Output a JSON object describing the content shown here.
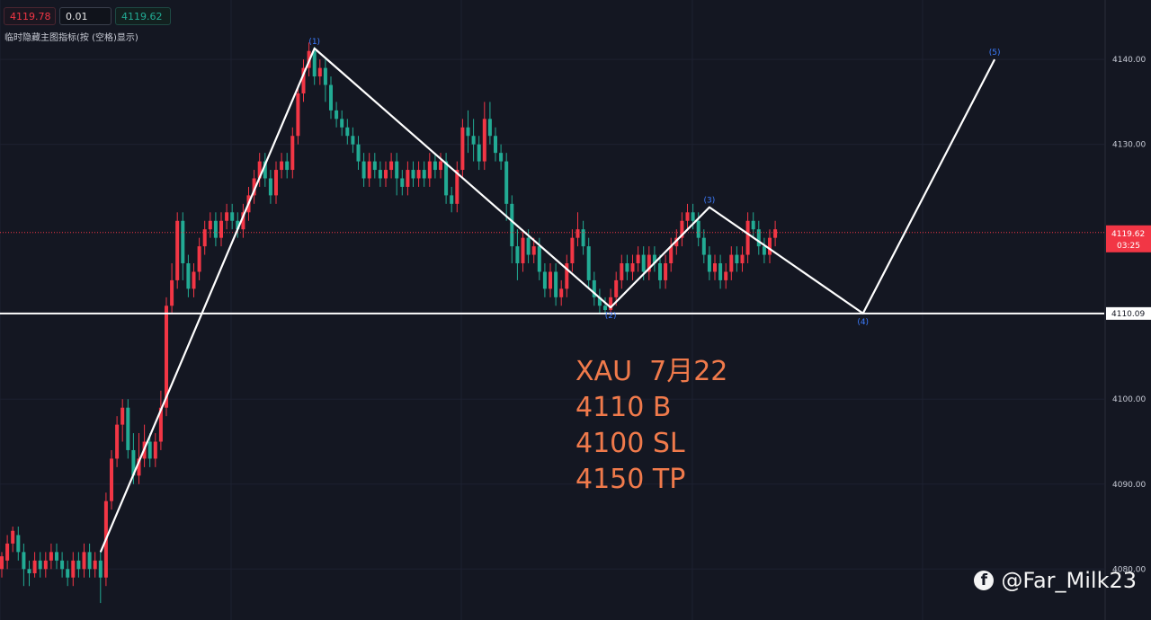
{
  "toolbar": {
    "bid": "4119.78",
    "quantity": "0.01",
    "ask": "4119.62",
    "hint": "临时隐藏主图指标(按 (空格)显示)"
  },
  "colors": {
    "background": "#141722",
    "up_candle": "#f23645",
    "down_candle": "#22ab94",
    "wave_line": "#ffffff",
    "wave_label": "#3d7dff",
    "text_accent": "#f07a4b"
  },
  "chart_data": {
    "type": "candlestick",
    "symbol": "XAU",
    "y_axis_ticks": [
      "4140.00",
      "4130.00",
      "4100.00",
      "4090.00",
      "4080.00"
    ],
    "ylim": [
      4074,
      4147
    ],
    "current_price": {
      "value": 4119.62,
      "label": "4119.62",
      "countdown": "03:25"
    },
    "support_line": {
      "value": 4110.09,
      "label": "4110.09"
    },
    "candles": [
      [
        4080,
        4081.5,
        4079,
        4082
      ],
      [
        4081,
        4083,
        4080,
        4084
      ],
      [
        4083,
        4084.5,
        4082,
        4085
      ],
      [
        4084,
        4082,
        4081,
        4085
      ],
      [
        4082,
        4080,
        4078,
        4083
      ],
      [
        4080,
        4079.5,
        4078,
        4081
      ],
      [
        4079.5,
        4081,
        4079,
        4082
      ],
      [
        4081,
        4080,
        4079,
        4082
      ],
      [
        4080,
        4081,
        4079,
        4082
      ],
      [
        4081,
        4082,
        4080,
        4083
      ],
      [
        4082,
        4081,
        4080,
        4083
      ],
      [
        4081,
        4080,
        4079,
        4082
      ],
      [
        4080,
        4079,
        4078,
        4081
      ],
      [
        4079,
        4081,
        4078,
        4082
      ],
      [
        4081,
        4080,
        4079,
        4082
      ],
      [
        4080,
        4082,
        4079,
        4083
      ],
      [
        4082,
        4080,
        4079,
        4083
      ],
      [
        4080,
        4081,
        4079,
        4082
      ],
      [
        4081,
        4079,
        4076,
        4082
      ],
      [
        4079,
        4088,
        4078,
        4089
      ],
      [
        4088,
        4093,
        4087,
        4094
      ],
      [
        4093,
        4097,
        4092,
        4098
      ],
      [
        4097,
        4099,
        4095,
        4100
      ],
      [
        4099,
        4094,
        4093,
        4100
      ],
      [
        4094,
        4091,
        4090,
        4096
      ],
      [
        4091,
        4093,
        4090,
        4096
      ],
      [
        4093,
        4095,
        4092,
        4097
      ],
      [
        4095,
        4093,
        4092,
        4096
      ],
      [
        4093,
        4095,
        4092,
        4096
      ],
      [
        4095,
        4099,
        4094,
        4101
      ],
      [
        4099,
        4111,
        4098,
        4112
      ],
      [
        4111,
        4114,
        4110,
        4116
      ],
      [
        4114,
        4121,
        4113,
        4122
      ],
      [
        4121,
        4116,
        4114,
        4122
      ],
      [
        4116,
        4113,
        4112,
        4117
      ],
      [
        4113,
        4115,
        4112,
        4116
      ],
      [
        4115,
        4118,
        4114,
        4119
      ],
      [
        4118,
        4120,
        4117,
        4121
      ],
      [
        4120,
        4121,
        4119,
        4122
      ],
      [
        4121,
        4119,
        4118,
        4122
      ],
      [
        4119,
        4121,
        4118,
        4122
      ],
      [
        4121,
        4122,
        4120,
        4123
      ],
      [
        4122,
        4121,
        4120,
        4123
      ],
      [
        4121,
        4120,
        4119,
        4122
      ],
      [
        4120,
        4122,
        4119,
        4123
      ],
      [
        4122,
        4124,
        4121,
        4125
      ],
      [
        4124,
        4126,
        4123,
        4127
      ],
      [
        4126,
        4128,
        4125,
        4129
      ],
      [
        4128,
        4126,
        4125,
        4129
      ],
      [
        4126,
        4124,
        4123,
        4127
      ],
      [
        4124,
        4127,
        4123,
        4128
      ],
      [
        4127,
        4128,
        4126,
        4129
      ],
      [
        4128,
        4127,
        4126,
        4129
      ],
      [
        4127,
        4131,
        4126,
        4132
      ],
      [
        4131,
        4136,
        4130,
        4137
      ],
      [
        4136,
        4139,
        4135,
        4140
      ],
      [
        4139,
        4141,
        4138,
        4142
      ],
      [
        4141,
        4138,
        4137,
        4141.5
      ],
      [
        4138,
        4139,
        4137,
        4140
      ],
      [
        4139,
        4137,
        4135,
        4140
      ],
      [
        4137,
        4134,
        4133,
        4138
      ],
      [
        4134,
        4133,
        4132,
        4135
      ],
      [
        4133,
        4132,
        4131,
        4134
      ],
      [
        4132,
        4131,
        4130,
        4133
      ],
      [
        4131,
        4130,
        4129,
        4132
      ],
      [
        4130,
        4128,
        4127,
        4131
      ],
      [
        4128,
        4126,
        4125,
        4129
      ],
      [
        4126,
        4128,
        4125,
        4129
      ],
      [
        4128,
        4127,
        4126,
        4129
      ],
      [
        4127,
        4126,
        4125,
        4128
      ],
      [
        4126,
        4127,
        4125,
        4128
      ],
      [
        4127,
        4128,
        4126,
        4129
      ],
      [
        4128,
        4126,
        4124,
        4129
      ],
      [
        4126,
        4125,
        4124,
        4127
      ],
      [
        4125,
        4127,
        4124,
        4128
      ],
      [
        4127,
        4126,
        4125,
        4128
      ],
      [
        4126,
        4127,
        4125,
        4128
      ],
      [
        4127,
        4126,
        4125,
        4128
      ],
      [
        4126,
        4128,
        4125,
        4129
      ],
      [
        4128,
        4127,
        4126,
        4129
      ],
      [
        4127,
        4128,
        4126,
        4129
      ],
      [
        4128,
        4124,
        4123,
        4129
      ],
      [
        4124,
        4123,
        4122,
        4125
      ],
      [
        4123,
        4127,
        4122,
        4128
      ],
      [
        4127,
        4132,
        4126,
        4133
      ],
      [
        4132,
        4131,
        4129,
        4134
      ],
      [
        4131,
        4130,
        4128,
        4133
      ],
      [
        4130,
        4128,
        4127,
        4131
      ],
      [
        4128,
        4133,
        4127,
        4135
      ],
      [
        4133,
        4131,
        4130,
        4135
      ],
      [
        4131,
        4129,
        4128,
        4132
      ],
      [
        4129,
        4128,
        4127,
        4130
      ],
      [
        4128,
        4123,
        4121,
        4129
      ],
      [
        4123,
        4118,
        4116,
        4124
      ],
      [
        4118,
        4116,
        4114,
        4120
      ],
      [
        4116,
        4119,
        4115,
        4120
      ],
      [
        4119,
        4117,
        4116,
        4120
      ],
      [
        4117,
        4118,
        4116,
        4119
      ],
      [
        4118,
        4115,
        4114,
        4119
      ],
      [
        4115,
        4113,
        4112,
        4116
      ],
      [
        4113,
        4115,
        4112,
        4116
      ],
      [
        4115,
        4112,
        4111,
        4116
      ],
      [
        4112,
        4113,
        4111,
        4114
      ],
      [
        4113,
        4116,
        4112,
        4117
      ],
      [
        4116,
        4119,
        4115,
        4120
      ],
      [
        4119,
        4120,
        4118,
        4122
      ],
      [
        4120,
        4118,
        4117,
        4121
      ],
      [
        4118,
        4114,
        4113,
        4119
      ],
      [
        4114,
        4112,
        4111,
        4115
      ],
      [
        4112,
        4111,
        4110,
        4113
      ],
      [
        4111,
        4110.5,
        4110,
        4112
      ],
      [
        4110.5,
        4112,
        4110,
        4113
      ],
      [
        4112,
        4114,
        4111,
        4115
      ],
      [
        4114,
        4116,
        4113,
        4117
      ],
      [
        4116,
        4115,
        4114,
        4117
      ],
      [
        4115,
        4116,
        4114,
        4117
      ],
      [
        4116,
        4117,
        4115,
        4118
      ],
      [
        4117,
        4115,
        4114,
        4118
      ],
      [
        4115,
        4117,
        4114,
        4118
      ],
      [
        4117,
        4116,
        4115,
        4118
      ],
      [
        4116,
        4114,
        4113,
        4117
      ],
      [
        4114,
        4116,
        4113,
        4117
      ],
      [
        4116,
        4118,
        4115,
        4119
      ],
      [
        4118,
        4119,
        4117,
        4120
      ],
      [
        4119,
        4121,
        4118,
        4122
      ],
      [
        4121,
        4122,
        4120,
        4123
      ],
      [
        4122,
        4121,
        4120,
        4123
      ],
      [
        4121,
        4119,
        4118,
        4122
      ],
      [
        4119,
        4117,
        4116,
        4120
      ],
      [
        4117,
        4115,
        4114,
        4118
      ],
      [
        4115,
        4116,
        4114,
        4117
      ],
      [
        4116,
        4114,
        4113,
        4117
      ],
      [
        4114,
        4115,
        4113,
        4116
      ],
      [
        4115,
        4117,
        4114,
        4118
      ],
      [
        4117,
        4116,
        4115,
        4118
      ],
      [
        4116,
        4117,
        4115,
        4118
      ],
      [
        4117,
        4121,
        4116,
        4122
      ],
      [
        4121,
        4120,
        4119,
        4122
      ],
      [
        4120,
        4118,
        4117,
        4121
      ],
      [
        4118,
        4117,
        4116,
        4119
      ],
      [
        4117,
        4119,
        4116,
        4120
      ],
      [
        4119,
        4120,
        4118,
        4121
      ]
    ],
    "wave": [
      {
        "label": "(1)",
        "index": 57,
        "price": 4141.3
      },
      {
        "label": "(2)",
        "index": 111,
        "price": 4110.8
      },
      {
        "label": "(3)",
        "index": 129,
        "price": 4122.6
      },
      {
        "label": "(4)",
        "index": 157,
        "price": 4110.1
      },
      {
        "label": "(5)",
        "index": 181,
        "price": 4140.0
      }
    ],
    "wave_start": {
      "index": 18,
      "price": 4082
    }
  },
  "annotation": {
    "symbol_date": "XAU  7月22",
    "buy": "4110 B",
    "stop_loss": "4100 SL",
    "take_profit": "4150 TP"
  },
  "watermark": "@Far_Milk23"
}
